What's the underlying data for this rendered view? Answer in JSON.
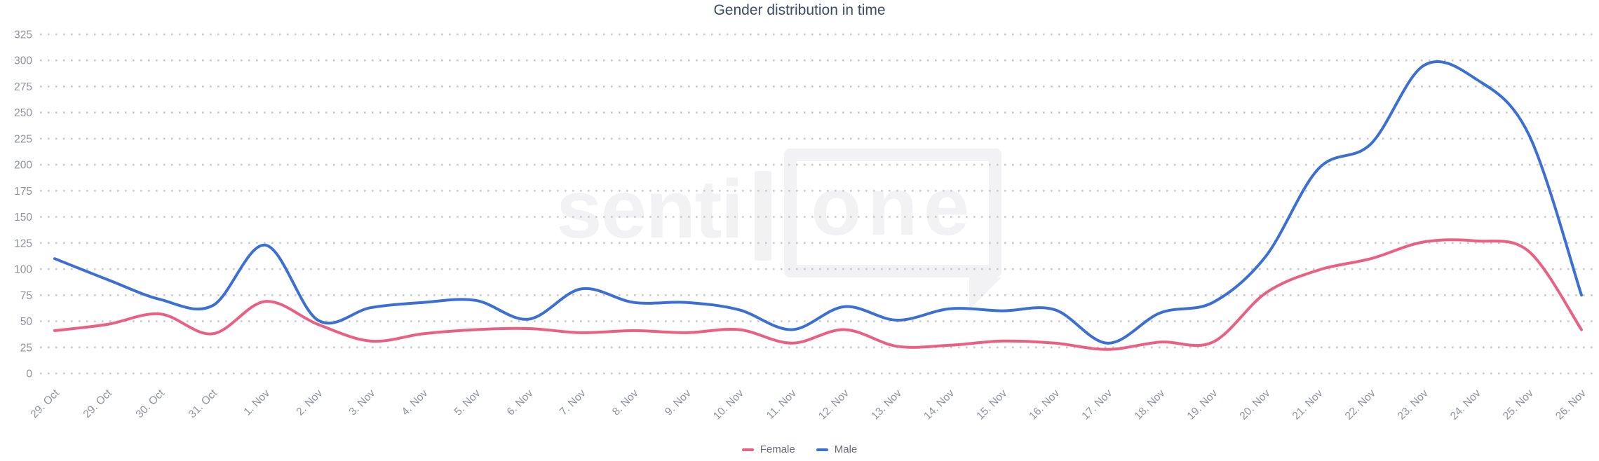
{
  "chart": {
    "title": "Gender distribution in time",
    "watermark": {
      "prefix": "senti",
      "boxed": "one"
    }
  },
  "chart_data": {
    "type": "line",
    "title": "Gender distribution in time",
    "xlabel": "",
    "ylabel": "",
    "ylim": [
      0,
      325
    ],
    "ytick_interval": 25,
    "yticks": [
      0,
      25,
      50,
      75,
      100,
      125,
      150,
      175,
      200,
      225,
      250,
      275,
      300,
      325
    ],
    "grid": "dotted-horizontal",
    "legend_position": "bottom-center",
    "x_label_rotation": -45,
    "categories": [
      "29. Oct",
      "29. Oct",
      "30. Oct",
      "31. Oct",
      "1. Nov",
      "2. Nov",
      "3. Nov",
      "4. Nov",
      "5. Nov",
      "6. Nov",
      "7. Nov",
      "8. Nov",
      "9. Nov",
      "10. Nov",
      "11. Nov",
      "12. Nov",
      "13. Nov",
      "14. Nov",
      "15. Nov",
      "16. Nov",
      "17. Nov",
      "18. Nov",
      "19. Nov",
      "20. Nov",
      "21. Nov",
      "22. Nov",
      "23. Nov",
      "24. Nov",
      "25. Nov",
      "26. Nov"
    ],
    "series": [
      {
        "name": "Female",
        "color": "#ea6083",
        "values": [
          41,
          47,
          57,
          38,
          69,
          47,
          31,
          38,
          42,
          43,
          39,
          41,
          39,
          42,
          29,
          42,
          26,
          27,
          31,
          29,
          23,
          30,
          30,
          77,
          99,
          110,
          126,
          127,
          117,
          42
        ]
      },
      {
        "name": "Male",
        "color": "#3b6fd4",
        "values": [
          110,
          90,
          71,
          65,
          123,
          51,
          63,
          68,
          70,
          52,
          81,
          68,
          68,
          61,
          42,
          64,
          51,
          62,
          60,
          61,
          29,
          58,
          68,
          112,
          196,
          220,
          295,
          282,
          229,
          75
        ]
      }
    ],
    "colors": {
      "title_text": "#3c4d63",
      "axis_label_text": "#8d93a0",
      "grid_dots": "#c9cacf",
      "legend_text": "#656d79",
      "watermark": "#f2f2f5",
      "background": "#ffffff"
    }
  }
}
